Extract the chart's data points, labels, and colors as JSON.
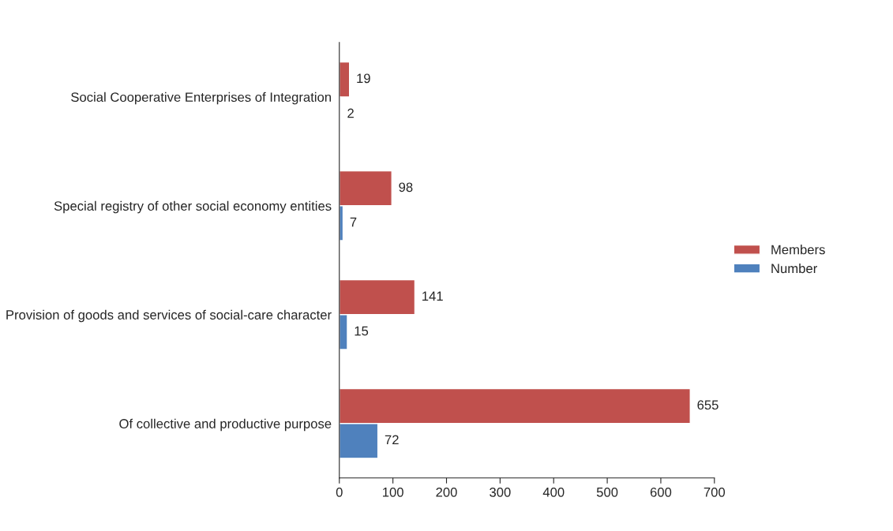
{
  "chart_data": {
    "type": "bar",
    "orientation": "horizontal",
    "categories": [
      "Social Cooperative Enterprises of Integration",
      "Special registry of other social economy entities",
      "Provision of goods and services of social-care character",
      "Of collective and productive purpose"
    ],
    "series": [
      {
        "name": "Members",
        "color": "#c0504d",
        "values": [
          19,
          98,
          141,
          655
        ]
      },
      {
        "name": "Number",
        "color": "#4f81bd",
        "values": [
          2,
          7,
          15,
          72
        ]
      }
    ],
    "xlim": [
      0,
      700
    ],
    "xticks": [
      0,
      100,
      200,
      300,
      400,
      500,
      600,
      700
    ],
    "data_labels": true,
    "legend": "right",
    "grid": false
  }
}
